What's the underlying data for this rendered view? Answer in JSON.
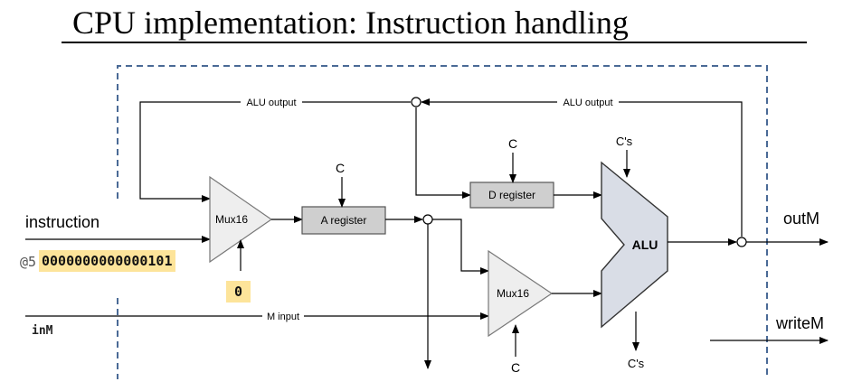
{
  "title": "CPU implementation: Instruction handling",
  "labels": {
    "instruction": "instruction",
    "at_address": "@5",
    "instruction_value": "0000000000000101",
    "zero_value": "0",
    "inM": "inM",
    "outM": "outM",
    "writeM": "writeM",
    "alu_output": "ALU output",
    "m_input": "M input",
    "control": "C",
    "control_cs": "C's"
  },
  "components": {
    "mux1": "Mux16",
    "mux2": "Mux16",
    "a_register": "A register",
    "d_register": "D register",
    "alu": "ALU"
  },
  "colors": {
    "highlight": "#fde49a",
    "register_fill": "#cfcfcf",
    "alu_fill": "#d9dde6",
    "mux_fill": "#eeeeee",
    "frame": "#4a6a96"
  }
}
